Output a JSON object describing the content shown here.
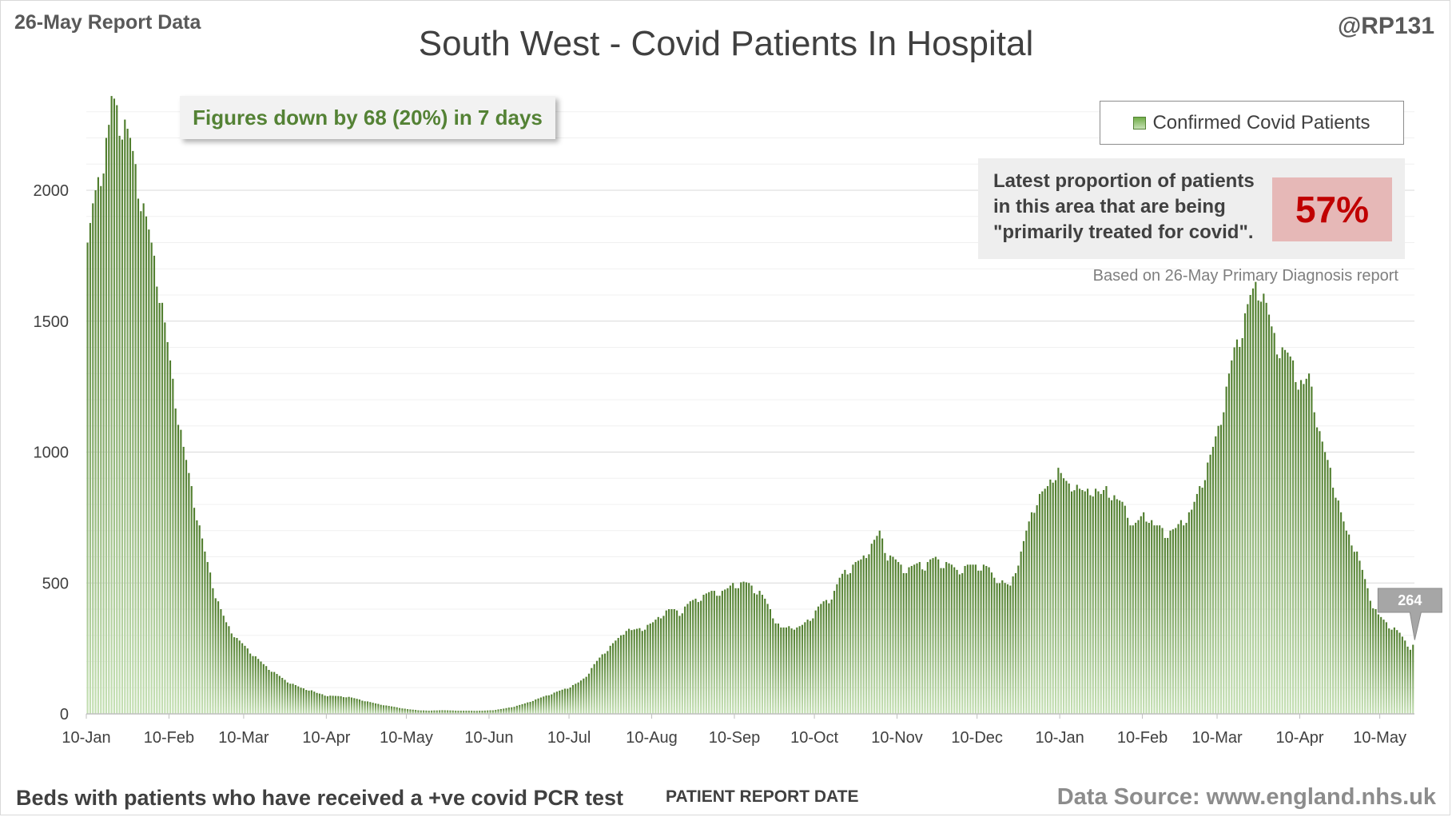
{
  "header": {
    "report_tag": "26-May Report Data",
    "handle": "@RP131",
    "title": "South West - Covid Patients In Hospital"
  },
  "callout": {
    "text": "Figures down by 68 (20%) in 7 days"
  },
  "legend": {
    "label": "Confirmed Covid Patients"
  },
  "proportion": {
    "text_line1": "Latest proportion of patients",
    "text_line2": "in this area that are being",
    "text_line3": "\"primarily treated for covid\".",
    "value": "57%",
    "note": "Based on 26-May Primary Diagnosis report"
  },
  "footer": {
    "left": "Beds with patients who have received a +ve covid PCR test",
    "x_axis_title": "PATIENT REPORT DATE",
    "source": "Data Source: www.england.nhs.uk"
  },
  "colors": {
    "bar_top": "#4e7c2b",
    "bar_bottom": "#c5e0b4",
    "grid": "#d9d9d9",
    "accent_red": "#c00000",
    "callout_green": "#548235"
  },
  "chart_data": {
    "type": "bar",
    "title": "South West - Covid Patients In Hospital",
    "xlabel": "PATIENT REPORT DATE",
    "ylabel": "",
    "ylim": [
      0,
      2400
    ],
    "yticks": [
      0,
      500,
      1000,
      1500,
      2000
    ],
    "grid": true,
    "legend_position": "top-right",
    "x_tick_labels": [
      "10-Jan",
      "10-Feb",
      "10-Mar",
      "10-Apr",
      "10-May",
      "10-Jun",
      "10-Jul",
      "10-Aug",
      "10-Sep",
      "10-Oct",
      "10-Nov",
      "10-Dec",
      "10-Jan",
      "10-Feb",
      "10-Mar",
      "10-Apr",
      "10-May"
    ],
    "x_tick_day_offsets": [
      0,
      31,
      59,
      90,
      120,
      151,
      181,
      212,
      243,
      273,
      304,
      334,
      365,
      396,
      424,
      455,
      485
    ],
    "series": [
      {
        "name": "Confirmed Covid Patients",
        "keypoints_day_value": [
          [
            0,
            1800
          ],
          [
            2,
            1950
          ],
          [
            4,
            2050
          ],
          [
            6,
            2150
          ],
          [
            8,
            2250
          ],
          [
            9,
            2360
          ],
          [
            10,
            2350
          ],
          [
            12,
            2300
          ],
          [
            14,
            2270
          ],
          [
            16,
            2200
          ],
          [
            18,
            2100
          ],
          [
            20,
            2000
          ],
          [
            22,
            1900
          ],
          [
            24,
            1800
          ],
          [
            26,
            1700
          ],
          [
            28,
            1570
          ],
          [
            30,
            1420
          ],
          [
            32,
            1280
          ],
          [
            34,
            1150
          ],
          [
            36,
            1020
          ],
          [
            38,
            920
          ],
          [
            40,
            820
          ],
          [
            42,
            720
          ],
          [
            44,
            620
          ],
          [
            46,
            540
          ],
          [
            48,
            460
          ],
          [
            50,
            400
          ],
          [
            52,
            350
          ],
          [
            54,
            320
          ],
          [
            56,
            290
          ],
          [
            58,
            270
          ],
          [
            60,
            250
          ],
          [
            62,
            230
          ],
          [
            64,
            210
          ],
          [
            66,
            190
          ],
          [
            68,
            175
          ],
          [
            70,
            160
          ],
          [
            72,
            145
          ],
          [
            74,
            130
          ],
          [
            76,
            120
          ],
          [
            78,
            110
          ],
          [
            80,
            100
          ],
          [
            84,
            90
          ],
          [
            86,
            80
          ],
          [
            88,
            75
          ],
          [
            90,
            70
          ],
          [
            94,
            68
          ],
          [
            98,
            65
          ],
          [
            100,
            60
          ],
          [
            104,
            50
          ],
          [
            108,
            40
          ],
          [
            112,
            32
          ],
          [
            116,
            25
          ],
          [
            120,
            18
          ],
          [
            124,
            14
          ],
          [
            128,
            12
          ],
          [
            132,
            14
          ],
          [
            140,
            12
          ],
          [
            148,
            12
          ],
          [
            152,
            14
          ],
          [
            156,
            20
          ],
          [
            160,
            28
          ],
          [
            164,
            40
          ],
          [
            168,
            55
          ],
          [
            172,
            70
          ],
          [
            176,
            85
          ],
          [
            180,
            100
          ],
          [
            184,
            120
          ],
          [
            186,
            135
          ],
          [
            188,
            160
          ],
          [
            190,
            190
          ],
          [
            192,
            215
          ],
          [
            194,
            240
          ],
          [
            196,
            260
          ],
          [
            198,
            280
          ],
          [
            200,
            300
          ],
          [
            202,
            330
          ],
          [
            204,
            320
          ],
          [
            206,
            325
          ],
          [
            208,
            330
          ],
          [
            210,
            340
          ],
          [
            212,
            350
          ],
          [
            214,
            370
          ],
          [
            216,
            390
          ],
          [
            218,
            400
          ],
          [
            220,
            400
          ],
          [
            222,
            390
          ],
          [
            224,
            410
          ],
          [
            226,
            430
          ],
          [
            228,
            440
          ],
          [
            230,
            450
          ],
          [
            232,
            460
          ],
          [
            234,
            470
          ],
          [
            236,
            470
          ],
          [
            238,
            470
          ],
          [
            240,
            480
          ],
          [
            242,
            500
          ],
          [
            244,
            500
          ],
          [
            246,
            505
          ],
          [
            248,
            500
          ],
          [
            250,
            480
          ],
          [
            252,
            470
          ],
          [
            254,
            440
          ],
          [
            256,
            400
          ],
          [
            258,
            360
          ],
          [
            260,
            330
          ],
          [
            262,
            330
          ],
          [
            264,
            340
          ],
          [
            266,
            330
          ],
          [
            268,
            340
          ],
          [
            270,
            360
          ],
          [
            272,
            380
          ],
          [
            274,
            410
          ],
          [
            276,
            430
          ],
          [
            278,
            440
          ],
          [
            280,
            470
          ],
          [
            282,
            520
          ],
          [
            284,
            550
          ],
          [
            286,
            560
          ],
          [
            288,
            580
          ],
          [
            290,
            590
          ],
          [
            292,
            620
          ],
          [
            294,
            650
          ],
          [
            296,
            680
          ],
          [
            297,
            700
          ],
          [
            298,
            670
          ],
          [
            300,
            610
          ],
          [
            302,
            600
          ],
          [
            304,
            580
          ],
          [
            306,
            560
          ],
          [
            308,
            560
          ],
          [
            310,
            570
          ],
          [
            312,
            580
          ],
          [
            314,
            570
          ],
          [
            316,
            590
          ],
          [
            318,
            600
          ],
          [
            320,
            580
          ],
          [
            322,
            580
          ],
          [
            324,
            570
          ],
          [
            326,
            550
          ],
          [
            328,
            560
          ],
          [
            330,
            570
          ],
          [
            332,
            570
          ],
          [
            334,
            570
          ],
          [
            336,
            570
          ],
          [
            338,
            560
          ],
          [
            340,
            520
          ],
          [
            342,
            520
          ],
          [
            344,
            500
          ],
          [
            346,
            490
          ],
          [
            348,
            560
          ],
          [
            350,
            620
          ],
          [
            352,
            700
          ],
          [
            354,
            770
          ],
          [
            356,
            830
          ],
          [
            358,
            850
          ],
          [
            360,
            870
          ],
          [
            362,
            920
          ],
          [
            364,
            940
          ],
          [
            366,
            900
          ],
          [
            368,
            880
          ],
          [
            370,
            890
          ],
          [
            372,
            860
          ],
          [
            374,
            850
          ],
          [
            376,
            870
          ],
          [
            378,
            860
          ],
          [
            380,
            840
          ],
          [
            382,
            870
          ],
          [
            384,
            850
          ],
          [
            386,
            820
          ],
          [
            388,
            810
          ],
          [
            390,
            780
          ],
          [
            392,
            720
          ],
          [
            394,
            740
          ],
          [
            396,
            770
          ],
          [
            398,
            760
          ],
          [
            400,
            720
          ],
          [
            402,
            720
          ],
          [
            404,
            700
          ],
          [
            406,
            700
          ],
          [
            408,
            710
          ],
          [
            410,
            740
          ],
          [
            412,
            760
          ],
          [
            414,
            780
          ],
          [
            416,
            840
          ],
          [
            418,
            900
          ],
          [
            420,
            960
          ],
          [
            422,
            1020
          ],
          [
            424,
            1100
          ],
          [
            426,
            1200
          ],
          [
            428,
            1300
          ],
          [
            430,
            1400
          ],
          [
            432,
            1460
          ],
          [
            434,
            1530
          ],
          [
            436,
            1600
          ],
          [
            438,
            1650
          ],
          [
            440,
            1640
          ],
          [
            442,
            1570
          ],
          [
            444,
            1480
          ],
          [
            446,
            1430
          ],
          [
            448,
            1400
          ],
          [
            450,
            1380
          ],
          [
            452,
            1350
          ],
          [
            454,
            1290
          ],
          [
            456,
            1260
          ],
          [
            458,
            1300
          ],
          [
            460,
            1200
          ],
          [
            462,
            1080
          ],
          [
            464,
            1000
          ],
          [
            466,
            940
          ],
          [
            468,
            860
          ],
          [
            470,
            770
          ],
          [
            472,
            700
          ],
          [
            474,
            670
          ],
          [
            476,
            620
          ],
          [
            478,
            550
          ],
          [
            480,
            480
          ],
          [
            482,
            420
          ],
          [
            484,
            380
          ],
          [
            486,
            360
          ],
          [
            488,
            340
          ],
          [
            490,
            330
          ],
          [
            492,
            310
          ],
          [
            494,
            280
          ],
          [
            496,
            255
          ],
          [
            497,
            264
          ]
        ]
      }
    ],
    "latest_label": "264",
    "latest_value": 264,
    "total_days": 498
  }
}
